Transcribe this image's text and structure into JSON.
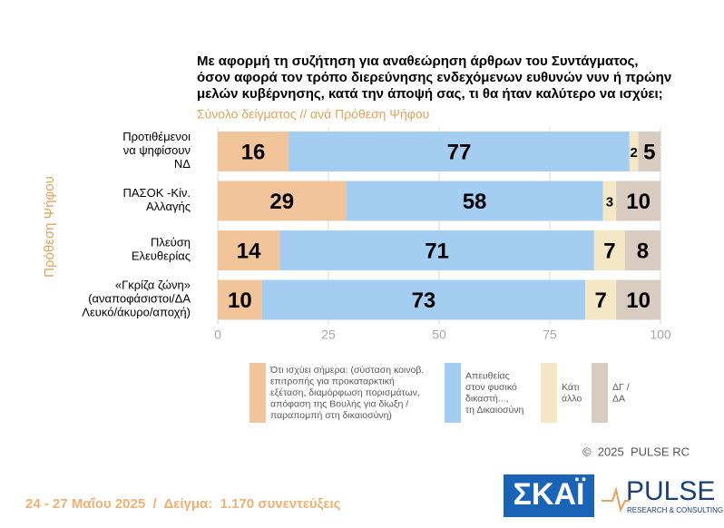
{
  "chart_data": {
    "type": "stacked-barh",
    "title": "Με αφορμή τη συζήτηση για αναθεώρηση άρθρων του Συντάγματος,\nόσον αφορά τον τρόπο διερεύνησης ενδεχόμενων ευθυνών νυν ή πρώην\nμελών κυβέρνησης, κατά την άποψή σας, τι θα ήταν καλύτερο να ισχύει;",
    "subtitle": "Σύνολο δείγματος // ανά Πρόθεση Ψήφου",
    "y_label": "Πρόθεση Ψήφου",
    "categories": [
      "Προτιθέμενοι\nνα ψηφίσουν\nΝΔ",
      "ΠΑΣΟΚ -Κίν.\nΑλλαγής",
      "Πλεύση\nΕλευθερίας",
      "«Γκρίζα ζώνη»\n(αναποφάσιστοι/ΔΑ\nΛευκό/άκυρο/αποχή)"
    ],
    "series": [
      {
        "name": "Ότι ισχύει σήμερα: (σύσταση κοινοβ.\nεπιτροπής για προκαταρκτική\nεξέταση, διαμόρφωση πορισμάτων,\nαπόφαση της Βουλής για δίωξη /\nπαραπομπή στη δικαιοσύνη)",
        "color": "#f2c49a",
        "values": [
          16,
          29,
          14,
          10
        ]
      },
      {
        "name": "Απευθείας\nστον φυσικό\nδικαστή...,\nτη Δικαιοσύνη",
        "color": "#a3cdf1",
        "values": [
          77,
          58,
          71,
          73
        ]
      },
      {
        "name": "Κάτι\nάλλο",
        "color": "#f4e7c6",
        "values": [
          2,
          3,
          7,
          7
        ]
      },
      {
        "name": "ΔΓ /\nΔΑ",
        "color": "#d8cbbf",
        "values": [
          5,
          10,
          8,
          10
        ]
      }
    ],
    "xlim": [
      0,
      100
    ],
    "xticks": [
      0,
      25,
      50,
      75,
      100
    ],
    "grid": true
  },
  "footer": {
    "date_sample": "24 - 27 Μαΐου 2025  /  Δείγμα:  1.170 συνεντεύξεις",
    "copyright": "©  2025  PULSE RC",
    "logo_left": "ΣΚΑΪ",
    "logo_right": "PULSE",
    "logo_right_sub": "RESEARCH & CONSULTING"
  }
}
